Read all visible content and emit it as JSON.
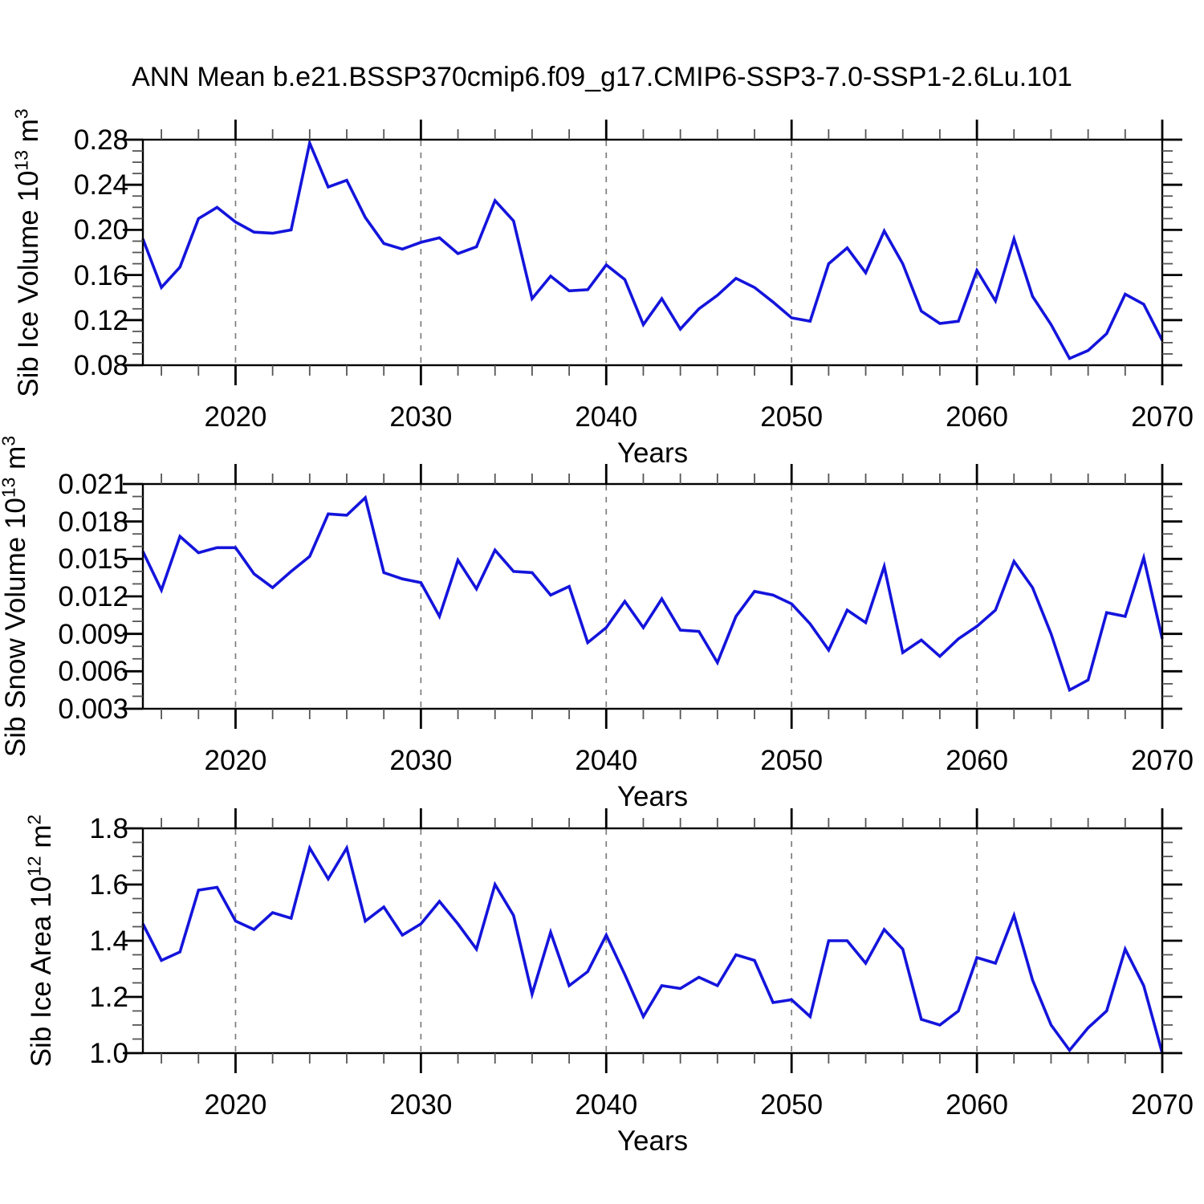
{
  "title": "ANN Mean b.e21.BSSP370cmip6.f09_g17.CMIP6-SSP3-7.0-SSP1-2.6Lu.101",
  "style": {
    "line_color": "#1414dc",
    "grid_color": "#7d7d7d",
    "frame_color": "#000000",
    "major_tick_color": "#000000",
    "minor_tick_color": "#555555",
    "background": "#ffffff"
  },
  "chart_data": [
    {
      "type": "line",
      "name": "sib-ice-volume",
      "title": "",
      "xlabel": "Years",
      "ylabel": "Sib Ice Volume 10^13 m^3",
      "ylabel_parts": {
        "text": "Sib Ice Volume 10",
        "exp": "13",
        "unit": " m",
        "unit_exp": "3"
      },
      "xlim": [
        2015,
        2070
      ],
      "ylim": [
        0.08,
        0.28
      ],
      "xticks": {
        "values": [
          2020,
          2030,
          2040,
          2050,
          2060,
          2070
        ],
        "labels": [
          "2020",
          "2030",
          "2040",
          "2050",
          "2060",
          "2070"
        ],
        "minor_step": 2
      },
      "yticks": {
        "values": [
          0.08,
          0.12,
          0.16,
          0.2,
          0.24,
          0.28
        ],
        "labels": [
          "0.08",
          "0.12",
          "0.16",
          "0.20",
          "0.24",
          "0.28"
        ],
        "minor_step": 0.01
      },
      "gridlines_x": [
        2020,
        2030,
        2040,
        2050,
        2060
      ],
      "grid": "vertical-dashed",
      "legend": "none",
      "x": [
        2015,
        2016,
        2017,
        2018,
        2019,
        2020,
        2021,
        2022,
        2023,
        2024,
        2025,
        2026,
        2027,
        2028,
        2029,
        2030,
        2031,
        2032,
        2033,
        2034,
        2035,
        2036,
        2037,
        2038,
        2039,
        2040,
        2041,
        2042,
        2043,
        2044,
        2045,
        2046,
        2047,
        2048,
        2049,
        2050,
        2051,
        2052,
        2053,
        2054,
        2055,
        2056,
        2057,
        2058,
        2059,
        2060,
        2061,
        2062,
        2063,
        2064,
        2065,
        2066,
        2067,
        2068,
        2069,
        2070
      ],
      "y": [
        0.192,
        0.149,
        0.167,
        0.21,
        0.22,
        0.207,
        0.198,
        0.197,
        0.2,
        0.277,
        0.238,
        0.244,
        0.211,
        0.188,
        0.183,
        0.189,
        0.193,
        0.179,
        0.185,
        0.226,
        0.208,
        0.139,
        0.159,
        0.146,
        0.147,
        0.169,
        0.156,
        0.116,
        0.139,
        0.112,
        0.13,
        0.142,
        0.157,
        0.149,
        0.136,
        0.122,
        0.119,
        0.17,
        0.184,
        0.162,
        0.199,
        0.17,
        0.128,
        0.117,
        0.119,
        0.164,
        0.137,
        0.192,
        0.141,
        0.116,
        0.086,
        0.093,
        0.108,
        0.143,
        0.134,
        0.102
      ]
    },
    {
      "type": "line",
      "name": "sib-snow-volume",
      "title": "",
      "xlabel": "Years",
      "ylabel": "Sib Snow Volume 10^13 m^3",
      "ylabel_parts": {
        "text": "Sib Snow Volume 10",
        "exp": "13",
        "unit": " m",
        "unit_exp": "3"
      },
      "xlim": [
        2015,
        2070
      ],
      "ylim": [
        0.003,
        0.021
      ],
      "xticks": {
        "values": [
          2020,
          2030,
          2040,
          2050,
          2060,
          2070
        ],
        "labels": [
          "2020",
          "2030",
          "2040",
          "2050",
          "2060",
          "2070"
        ],
        "minor_step": 2
      },
      "yticks": {
        "values": [
          0.003,
          0.006,
          0.009,
          0.012,
          0.015,
          0.018,
          0.021
        ],
        "labels": [
          "0.003",
          "0.006",
          "0.009",
          "0.012",
          "0.015",
          "0.018",
          "0.021"
        ],
        "minor_step": 0.001
      },
      "gridlines_x": [
        2020,
        2030,
        2040,
        2050,
        2060
      ],
      "grid": "vertical-dashed",
      "legend": "none",
      "x": [
        2015,
        2016,
        2017,
        2018,
        2019,
        2020,
        2021,
        2022,
        2023,
        2024,
        2025,
        2026,
        2027,
        2028,
        2029,
        2030,
        2031,
        2032,
        2033,
        2034,
        2035,
        2036,
        2037,
        2038,
        2039,
        2040,
        2041,
        2042,
        2043,
        2044,
        2045,
        2046,
        2047,
        2048,
        2049,
        2050,
        2051,
        2052,
        2053,
        2054,
        2055,
        2056,
        2057,
        2058,
        2059,
        2060,
        2061,
        2062,
        2063,
        2064,
        2065,
        2066,
        2067,
        2068,
        2069,
        2070
      ],
      "y": [
        0.0156,
        0.0125,
        0.0168,
        0.0155,
        0.0159,
        0.0159,
        0.0138,
        0.0127,
        0.014,
        0.0152,
        0.0186,
        0.0185,
        0.0199,
        0.0139,
        0.0134,
        0.0131,
        0.0104,
        0.0149,
        0.0126,
        0.0157,
        0.014,
        0.0139,
        0.0121,
        0.0128,
        0.0083,
        0.0095,
        0.0116,
        0.0095,
        0.0118,
        0.0093,
        0.0092,
        0.0067,
        0.0104,
        0.0124,
        0.0121,
        0.0114,
        0.0098,
        0.0077,
        0.0109,
        0.0099,
        0.0144,
        0.0075,
        0.0085,
        0.0072,
        0.0086,
        0.0096,
        0.0109,
        0.0148,
        0.0127,
        0.009,
        0.0045,
        0.0053,
        0.0107,
        0.0104,
        0.0151,
        0.0086
      ]
    },
    {
      "type": "line",
      "name": "sib-ice-area",
      "title": "",
      "xlabel": "Years",
      "ylabel": "Sib Ice Area 10^12 m^2",
      "ylabel_parts": {
        "text": "Sib Ice Area 10",
        "exp": "12",
        "unit": " m",
        "unit_exp": "2"
      },
      "xlim": [
        2015,
        2070
      ],
      "ylim": [
        1.0,
        1.8
      ],
      "xticks": {
        "values": [
          2020,
          2030,
          2040,
          2050,
          2060,
          2070
        ],
        "labels": [
          "2020",
          "2030",
          "2040",
          "2050",
          "2060",
          "2070"
        ],
        "minor_step": 2
      },
      "yticks": {
        "values": [
          1.0,
          1.2,
          1.4,
          1.6,
          1.8
        ],
        "labels": [
          "1.0",
          "1.2",
          "1.4",
          "1.6",
          "1.8"
        ],
        "minor_step": 0.05
      },
      "gridlines_x": [
        2020,
        2030,
        2040,
        2050,
        2060
      ],
      "grid": "vertical-dashed",
      "legend": "none",
      "x": [
        2015,
        2016,
        2017,
        2018,
        2019,
        2020,
        2021,
        2022,
        2023,
        2024,
        2025,
        2026,
        2027,
        2028,
        2029,
        2030,
        2031,
        2032,
        2033,
        2034,
        2035,
        2036,
        2037,
        2038,
        2039,
        2040,
        2041,
        2042,
        2043,
        2044,
        2045,
        2046,
        2047,
        2048,
        2049,
        2050,
        2051,
        2052,
        2053,
        2054,
        2055,
        2056,
        2057,
        2058,
        2059,
        2060,
        2061,
        2062,
        2063,
        2064,
        2065,
        2066,
        2067,
        2068,
        2069,
        2070
      ],
      "y": [
        1.46,
        1.33,
        1.36,
        1.58,
        1.59,
        1.47,
        1.44,
        1.5,
        1.48,
        1.73,
        1.62,
        1.73,
        1.47,
        1.52,
        1.42,
        1.46,
        1.54,
        1.46,
        1.37,
        1.6,
        1.49,
        1.21,
        1.43,
        1.24,
        1.29,
        1.42,
        1.28,
        1.13,
        1.24,
        1.23,
        1.27,
        1.24,
        1.35,
        1.33,
        1.18,
        1.19,
        1.13,
        1.4,
        1.4,
        1.32,
        1.44,
        1.37,
        1.12,
        1.1,
        1.15,
        1.34,
        1.32,
        1.49,
        1.26,
        1.1,
        1.01,
        1.09,
        1.15,
        1.37,
        1.24,
        1.0
      ]
    }
  ]
}
